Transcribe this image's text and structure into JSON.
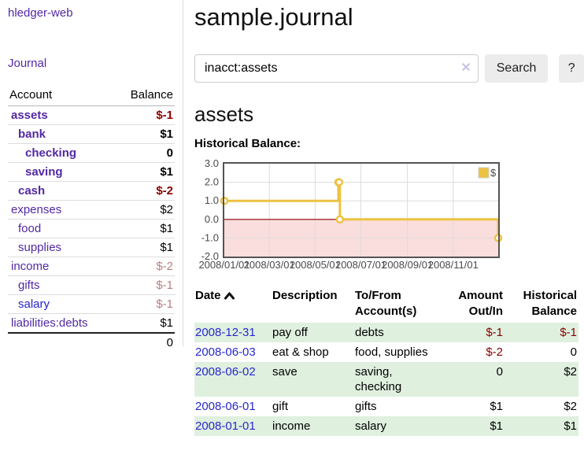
{
  "colors": {
    "link_purple": "#5229a3",
    "link_blue": "#2828cc",
    "negative_strong": "#8b0000",
    "negative_soft": "#b97f7f",
    "row_shade_green": "#dff0df",
    "button_gray": "#ececec"
  },
  "sidebar": {
    "brand": "hledger-web",
    "journal_link": "Journal",
    "accounts_header": {
      "account": "Account",
      "balance": "Balance"
    },
    "accounts": [
      {
        "name": "assets",
        "depth": 0,
        "bold": true,
        "balance": "$-1",
        "balance_class": "neg-strong"
      },
      {
        "name": "bank",
        "depth": 1,
        "bold": true,
        "balance": "$1",
        "balance_class": ""
      },
      {
        "name": "checking",
        "depth": 2,
        "bold": true,
        "balance": "0",
        "balance_class": ""
      },
      {
        "name": "saving",
        "depth": 2,
        "bold": true,
        "balance": "$1",
        "balance_class": ""
      },
      {
        "name": "cash",
        "depth": 1,
        "bold": true,
        "balance": "$-2",
        "balance_class": "neg-strong"
      },
      {
        "name": "expenses",
        "depth": 0,
        "bold": false,
        "balance": "$2",
        "balance_class": ""
      },
      {
        "name": "food",
        "depth": 1,
        "bold": false,
        "balance": "$1",
        "balance_class": ""
      },
      {
        "name": "supplies",
        "depth": 1,
        "bold": false,
        "balance": "$1",
        "balance_class": ""
      },
      {
        "name": "income",
        "depth": 0,
        "bold": false,
        "balance": "$-2",
        "balance_class": "neg-soft"
      },
      {
        "name": "gifts",
        "depth": 1,
        "bold": false,
        "balance": "$-1",
        "balance_class": "neg-soft"
      },
      {
        "name": "salary",
        "depth": 1,
        "bold": false,
        "link_color": "blue",
        "balance": "$-1",
        "balance_class": "neg-soft"
      },
      {
        "name": "liabilities:debts",
        "depth": 0,
        "bold": false,
        "balance": "$1",
        "balance_class": ""
      }
    ],
    "total": "0"
  },
  "main": {
    "title": "sample.journal",
    "search": {
      "value": "inacct:assets",
      "clear_icon": "✕",
      "button_label": "Search",
      "help_label": "?"
    },
    "account_heading": "assets",
    "chart_label": "Historical Balance:"
  },
  "chart_data": {
    "type": "line",
    "title": "Historical Balance:",
    "step": true,
    "series": [
      {
        "name": "$",
        "color": "#edc240",
        "points": [
          [
            "2008-01-01",
            1
          ],
          [
            "2008-06-01",
            2
          ],
          [
            "2008-06-02",
            2
          ],
          [
            "2008-06-03",
            0
          ],
          [
            "2008-12-31",
            -1
          ]
        ]
      }
    ],
    "x_range": [
      "2008-01-01",
      "2008-12-31"
    ],
    "x_ticks": [
      "2008/01/01",
      "2008/03/01",
      "2008/05/01",
      "2008/07/01",
      "2008/09/01",
      "2008/11/01"
    ],
    "y_ticks": [
      "3.0",
      "2.0",
      "1.0",
      "0.0",
      "-1.0",
      "-2.0"
    ],
    "ylim": [
      -2,
      3
    ],
    "grid": true,
    "legend": {
      "label": "$",
      "position": "top-right"
    },
    "negative_region_fill": "#fadddd",
    "zero_line_color": "#8b0000",
    "border_color": "#545454",
    "gridline_color": "#dcdcdc",
    "tick_label_color": "#4a4a4a"
  },
  "register": {
    "headers": [
      "Date",
      "Description",
      "To/From\nAccount(s)",
      "Amount\nOut/In",
      "Historical\nBalance"
    ],
    "rows": [
      {
        "date": "2008-12-31",
        "description": "pay off",
        "accounts": "debts",
        "amount": "$-1",
        "amount_neg": true,
        "balance": "$-1",
        "balance_neg": true,
        "shaded": true
      },
      {
        "date": "2008-06-03",
        "description": "eat & shop",
        "accounts": "food, supplies",
        "amount": "$-2",
        "amount_neg": true,
        "balance": "0",
        "balance_neg": false,
        "shaded": false
      },
      {
        "date": "2008-06-02",
        "description": "save",
        "accounts": "saving,\nchecking",
        "amount": "0",
        "amount_neg": false,
        "balance": "$2",
        "balance_neg": false,
        "shaded": true
      },
      {
        "date": "2008-06-01",
        "description": "gift",
        "accounts": "gifts",
        "amount": "$1",
        "amount_neg": false,
        "balance": "$2",
        "balance_neg": false,
        "shaded": false
      },
      {
        "date": "2008-01-01",
        "description": "income",
        "accounts": "salary",
        "amount": "$1",
        "amount_neg": false,
        "balance": "$1",
        "balance_neg": false,
        "shaded": true
      }
    ]
  }
}
